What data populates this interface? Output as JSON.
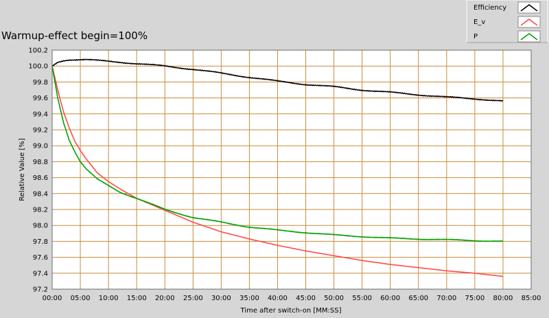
{
  "chart_data": {
    "type": "line",
    "title": "Warmup-effect begin=100%",
    "xlabel": "Time after switch-on [MM:SS]",
    "ylabel": "Relative Value [%]",
    "xlim": [
      0,
      85
    ],
    "ylim": [
      97.2,
      100.2
    ],
    "x_ticks": [
      "00:00",
      "05:00",
      "10:00",
      "15:00",
      "20:00",
      "25:00",
      "30:00",
      "35:00",
      "40:00",
      "45:00",
      "50:00",
      "55:00",
      "60:00",
      "65:00",
      "70:00",
      "75:00",
      "80:00",
      "85:00"
    ],
    "y_ticks": [
      "100.2",
      "100.0",
      "99.8",
      "99.6",
      "99.4",
      "99.2",
      "99.0",
      "98.8",
      "98.6",
      "98.4",
      "98.2",
      "98.0",
      "97.8",
      "97.6",
      "97.4",
      "97.2"
    ],
    "grid": true,
    "legend_position": "top-right",
    "colors": {
      "background": "#d6d6d6",
      "plot_background": "#ffffff",
      "grid": "#c88a3a"
    },
    "series": [
      {
        "name": "Efficiency",
        "color": "#000000",
        "x": [
          0,
          1,
          2,
          3,
          4,
          5,
          6,
          8,
          10,
          12,
          15,
          20,
          25,
          30,
          35,
          40,
          45,
          50,
          55,
          60,
          65,
          70,
          75,
          80
        ],
        "y": [
          100.0,
          100.05,
          100.07,
          100.08,
          100.08,
          100.08,
          100.08,
          100.07,
          100.06,
          100.05,
          100.03,
          100.0,
          99.96,
          99.91,
          99.86,
          99.81,
          99.77,
          99.74,
          99.7,
          99.67,
          99.64,
          99.61,
          99.59,
          99.56
        ]
      },
      {
        "name": "E_v",
        "color": "#ff4a4a",
        "x": [
          0,
          1,
          2,
          3,
          4,
          5,
          6,
          8,
          10,
          12,
          15,
          20,
          25,
          30,
          35,
          40,
          45,
          50,
          55,
          60,
          65,
          70,
          75,
          80
        ],
        "y": [
          100.0,
          99.7,
          99.43,
          99.23,
          99.06,
          98.94,
          98.84,
          98.66,
          98.55,
          98.46,
          98.34,
          98.19,
          98.04,
          97.92,
          97.83,
          97.75,
          97.68,
          97.62,
          97.56,
          97.51,
          97.47,
          97.43,
          97.4,
          97.36
        ]
      },
      {
        "name": "P",
        "color": "#00a000",
        "x": [
          0,
          1,
          2,
          3,
          4,
          5,
          6,
          8,
          10,
          12,
          15,
          20,
          25,
          30,
          35,
          40,
          45,
          50,
          55,
          60,
          65,
          70,
          75,
          80
        ],
        "y": [
          100.0,
          99.6,
          99.3,
          99.08,
          98.93,
          98.8,
          98.71,
          98.58,
          98.5,
          98.42,
          98.34,
          98.2,
          98.1,
          98.04,
          97.98,
          97.94,
          97.91,
          97.88,
          97.86,
          97.84,
          97.83,
          97.82,
          97.81,
          97.8
        ]
      }
    ]
  }
}
